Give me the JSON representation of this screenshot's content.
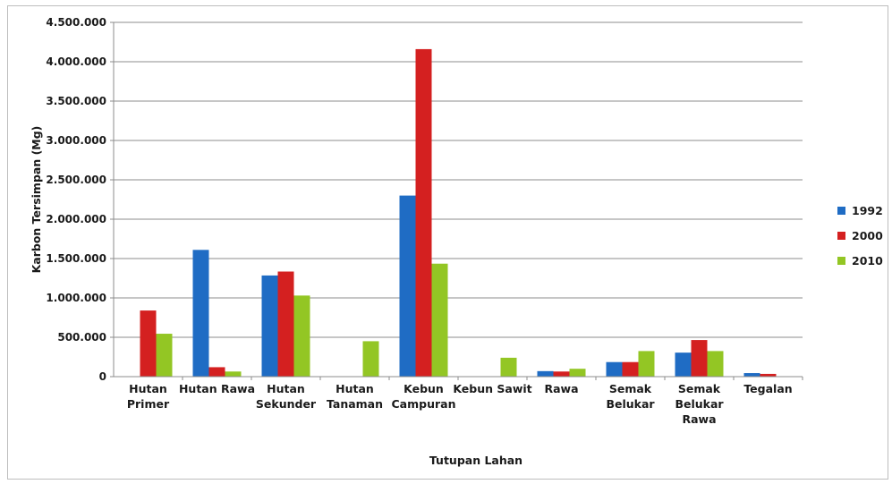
{
  "chart_data": {
    "type": "bar",
    "xlabel": "Tutupan Lahan",
    "ylabel": "Karbon Tersimpan (Mg)",
    "ylim": [
      0,
      4500000
    ],
    "yticks": [
      0,
      500000,
      1000000,
      1500000,
      2000000,
      2500000,
      3000000,
      3500000,
      4000000,
      4500000
    ],
    "ytick_labels": [
      "0",
      "500.000",
      "1.000.000",
      "1.500.000",
      "2.000.000",
      "2.500.000",
      "3.000.000",
      "3.500.000",
      "4.000.000",
      "4.500.000"
    ],
    "grid": true,
    "legend_position": "right",
    "categories": [
      [
        "Hutan",
        "Primer"
      ],
      [
        "Hutan Rawa"
      ],
      [
        "Hutan",
        "Sekunder"
      ],
      [
        "Hutan",
        "Tanaman"
      ],
      [
        "Kebun",
        "Campuran"
      ],
      [
        "Kebun Sawit"
      ],
      [
        "Rawa"
      ],
      [
        "Semak",
        "Belukar"
      ],
      [
        "Semak",
        "Belukar",
        "Rawa"
      ],
      [
        "Tegalan"
      ]
    ],
    "series": [
      {
        "name": "1992",
        "color": "#1f6cc4",
        "values": [
          0,
          1610000,
          1285000,
          0,
          2300000,
          0,
          70000,
          185000,
          305000,
          45000
        ]
      },
      {
        "name": "2000",
        "color": "#d42020",
        "values": [
          840000,
          120000,
          1335000,
          0,
          4160000,
          0,
          65000,
          185000,
          465000,
          35000
        ]
      },
      {
        "name": "2010",
        "color": "#93c624",
        "values": [
          545000,
          65000,
          1030000,
          450000,
          1435000,
          240000,
          100000,
          325000,
          325000,
          0
        ]
      }
    ]
  }
}
